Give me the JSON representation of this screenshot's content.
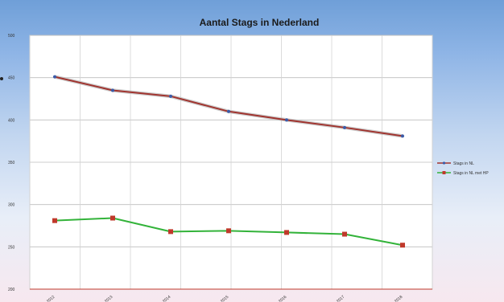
{
  "chart_data": {
    "type": "line",
    "title": "Aantal Stags in Nederland",
    "xlabel": "",
    "ylabel": "",
    "categories": [
      "2012",
      "2013",
      "2014",
      "2015",
      "2016",
      "2017",
      "2018"
    ],
    "ylim": [
      200,
      500
    ],
    "yticks": [
      200,
      250,
      300,
      350,
      400,
      450,
      500
    ],
    "grid": true,
    "legend_position": "right",
    "series": [
      {
        "name": "Stags in NL",
        "color": "#a0342f",
        "values": [
          451,
          435,
          428,
          410,
          400,
          391,
          381
        ]
      },
      {
        "name": "Stags in NL met HP",
        "color": "#33b33a",
        "marker_color": "#c0392b",
        "values": [
          281,
          284,
          268,
          269,
          267,
          265,
          252
        ]
      }
    ]
  }
}
